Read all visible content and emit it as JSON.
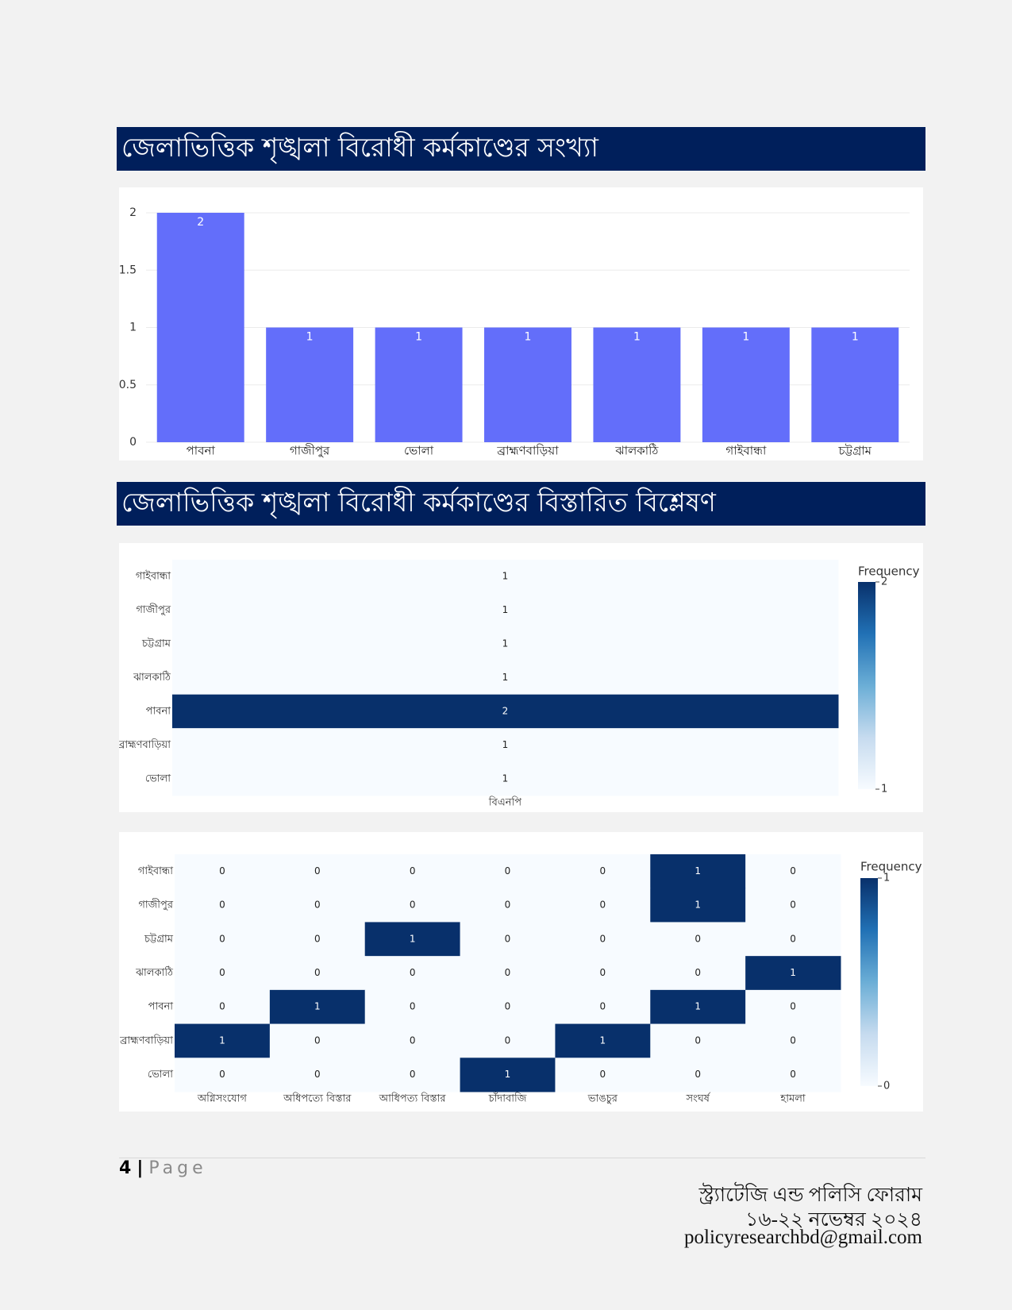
{
  "headings": [
    "জেলাভিত্তিক শৃঙ্খলা বিরোধী কর্মকাণ্ডের সংখ্যা",
    "জেলাভিত্তিক শৃঙ্খলা বিরোধী কর্মকাণ্ডের বিস্তারিত বিশ্লেষণ"
  ],
  "chart_data": [
    {
      "type": "bar",
      "categories": [
        "পাবনা",
        "গাজীপুর",
        "ভোলা",
        "ব্রাহ্মণবাড়িয়া",
        "ঝালকাঠি",
        "গাইবান্ধা",
        "চট্টগ্রাম"
      ],
      "values": [
        2,
        1,
        1,
        1,
        1,
        1,
        1
      ],
      "color": "#636efa",
      "ylim": [
        0,
        2
      ],
      "yticks": [
        0,
        0.5,
        1,
        1.5,
        2
      ],
      "grid": true
    },
    {
      "type": "heatmap",
      "x": [
        "বিএনপি"
      ],
      "y": [
        "গাইবান্ধা",
        "গাজীপুর",
        "চট্টগ্রাম",
        "ঝালকাঠি",
        "পাবনা",
        "ব্রাহ্মণবাড়িয়া",
        "ভোলা"
      ],
      "z": [
        [
          1
        ],
        [
          1
        ],
        [
          1
        ],
        [
          1
        ],
        [
          2
        ],
        [
          1
        ],
        [
          1
        ]
      ],
      "colorbar_title": "Frequency",
      "zlim": [
        1,
        2
      ],
      "zticks": [
        1,
        2
      ],
      "colorscale": [
        "#f7fbff",
        "#c6dbef",
        "#6baed6",
        "#2171b5",
        "#08306b"
      ]
    },
    {
      "type": "heatmap",
      "x": [
        "অগ্নিসংযোগ",
        "অধিপত্যে বিস্তার",
        "আধিপত্য বিস্তার",
        "চাঁদাবাজি",
        "ভাঙচুর",
        "সংঘর্ষ",
        "হামলা"
      ],
      "y": [
        "গাইবান্ধা",
        "গাজীপুর",
        "চট্টগ্রাম",
        "ঝালকাঠি",
        "পাবনা",
        "ব্রাহ্মণবাড়িয়া",
        "ভোলা"
      ],
      "z": [
        [
          0,
          0,
          0,
          0,
          0,
          1,
          0
        ],
        [
          0,
          0,
          0,
          0,
          0,
          1,
          0
        ],
        [
          0,
          0,
          1,
          0,
          0,
          0,
          0
        ],
        [
          0,
          0,
          0,
          0,
          0,
          0,
          1
        ],
        [
          0,
          1,
          0,
          0,
          0,
          1,
          0
        ],
        [
          1,
          0,
          0,
          0,
          1,
          0,
          0
        ],
        [
          0,
          0,
          0,
          1,
          0,
          0,
          0
        ]
      ],
      "colorbar_title": "Frequency",
      "zlim": [
        0,
        1
      ],
      "zticks": [
        0,
        1
      ],
      "colorscale": [
        "#f7fbff",
        "#c6dbef",
        "#6baed6",
        "#2171b5",
        "#08306b"
      ]
    }
  ],
  "footer": {
    "page_number": "4",
    "page_separator": "|",
    "page_word": "Page",
    "org": "স্ট্র্যাটেজি এন্ড পলিসি ফোরাম",
    "date": "১৬-২২ নভেম্বর ২০২৪",
    "email": "policyresearchbd@gmail.com"
  }
}
